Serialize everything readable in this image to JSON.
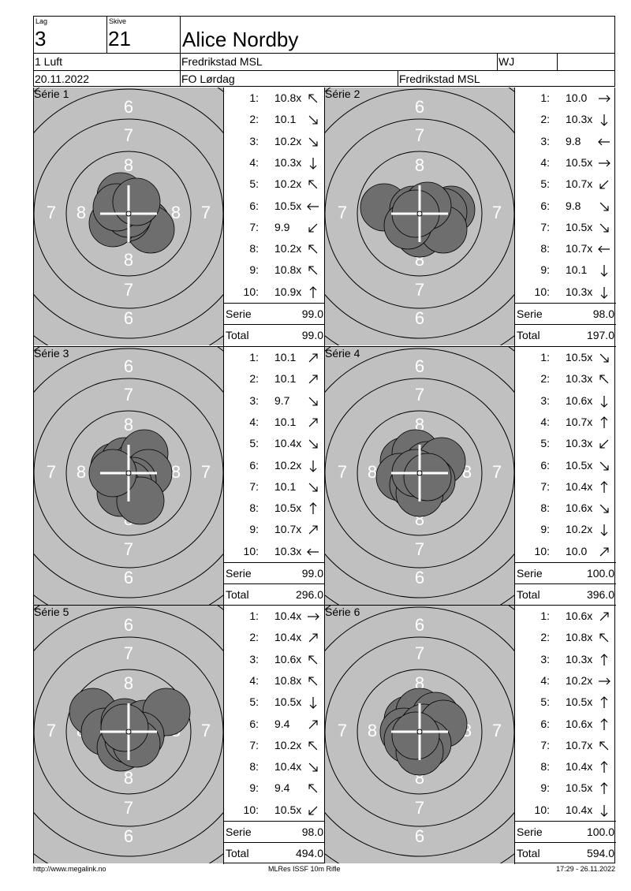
{
  "header": {
    "lag_label": "Lag",
    "lag_value": "3",
    "skive_label": "Skive",
    "skive_value": "21",
    "shooter_name": "Alice Nordby",
    "class": "1 Luft",
    "club": "Fredrikstad MSL",
    "category": "WJ",
    "extra": "",
    "date": "20.11.2022",
    "competition": "FO Lørdag",
    "organizer": "Fredrikstad MSL"
  },
  "labels": {
    "serie": "Serie",
    "total": "Total"
  },
  "ring_numbers": [
    "6",
    "7",
    "8"
  ],
  "series": [
    {
      "title": "Série 1",
      "serie": "99.0",
      "total": "99.0",
      "shots": [
        {
          "n": "1:",
          "v": "10.8x",
          "dir": "nw"
        },
        {
          "n": "2:",
          "v": "10.1",
          "dir": "se"
        },
        {
          "n": "3:",
          "v": "10.2x",
          "dir": "se"
        },
        {
          "n": "4:",
          "v": "10.3x",
          "dir": "s"
        },
        {
          "n": "5:",
          "v": "10.2x",
          "dir": "nw"
        },
        {
          "n": "6:",
          "v": "10.5x",
          "dir": "w"
        },
        {
          "n": "7:",
          "v": "9.9",
          "dir": "sw"
        },
        {
          "n": "8:",
          "v": "10.2x",
          "dir": "nw"
        },
        {
          "n": "9:",
          "v": "10.8x",
          "dir": "nw"
        },
        {
          "n": "10:",
          "v": "10.9x",
          "dir": "n"
        }
      ]
    },
    {
      "title": "Série 2",
      "serie": "98.0",
      "total": "197.0",
      "shots": [
        {
          "n": "1:",
          "v": "10.0",
          "dir": "e"
        },
        {
          "n": "2:",
          "v": "10.3x",
          "dir": "s"
        },
        {
          "n": "3:",
          "v": "9.8",
          "dir": "w"
        },
        {
          "n": "4:",
          "v": "10.5x",
          "dir": "e"
        },
        {
          "n": "5:",
          "v": "10.7x",
          "dir": "sw"
        },
        {
          "n": "6:",
          "v": "9.8",
          "dir": "se"
        },
        {
          "n": "7:",
          "v": "10.5x",
          "dir": "se"
        },
        {
          "n": "8:",
          "v": "10.7x",
          "dir": "w"
        },
        {
          "n": "9:",
          "v": "10.1",
          "dir": "s"
        },
        {
          "n": "10:",
          "v": "10.3x",
          "dir": "s"
        }
      ]
    },
    {
      "title": "Série 3",
      "serie": "99.0",
      "total": "296.0",
      "shots": [
        {
          "n": "1:",
          "v": "10.1",
          "dir": "ne"
        },
        {
          "n": "2:",
          "v": "10.1",
          "dir": "ne"
        },
        {
          "n": "3:",
          "v": "9.7",
          "dir": "se"
        },
        {
          "n": "4:",
          "v": "10.1",
          "dir": "ne"
        },
        {
          "n": "5:",
          "v": "10.4x",
          "dir": "se"
        },
        {
          "n": "6:",
          "v": "10.2x",
          "dir": "s"
        },
        {
          "n": "7:",
          "v": "10.1",
          "dir": "se"
        },
        {
          "n": "8:",
          "v": "10.5x",
          "dir": "n"
        },
        {
          "n": "9:",
          "v": "10.7x",
          "dir": "ne"
        },
        {
          "n": "10:",
          "v": "10.3x",
          "dir": "w"
        }
      ]
    },
    {
      "title": "Série 4",
      "serie": "100.0",
      "total": "396.0",
      "shots": [
        {
          "n": "1:",
          "v": "10.5x",
          "dir": "se"
        },
        {
          "n": "2:",
          "v": "10.3x",
          "dir": "nw"
        },
        {
          "n": "3:",
          "v": "10.6x",
          "dir": "s"
        },
        {
          "n": "4:",
          "v": "10.7x",
          "dir": "n"
        },
        {
          "n": "5:",
          "v": "10.3x",
          "dir": "sw"
        },
        {
          "n": "6:",
          "v": "10.5x",
          "dir": "se"
        },
        {
          "n": "7:",
          "v": "10.4x",
          "dir": "n"
        },
        {
          "n": "8:",
          "v": "10.6x",
          "dir": "se"
        },
        {
          "n": "9:",
          "v": "10.2x",
          "dir": "s"
        },
        {
          "n": "10:",
          "v": "10.0",
          "dir": "ne"
        }
      ]
    },
    {
      "title": "Série 5",
      "serie": "98.0",
      "total": "494.0",
      "shots": [
        {
          "n": "1:",
          "v": "10.4x",
          "dir": "e"
        },
        {
          "n": "2:",
          "v": "10.4x",
          "dir": "ne"
        },
        {
          "n": "3:",
          "v": "10.6x",
          "dir": "nw"
        },
        {
          "n": "4:",
          "v": "10.8x",
          "dir": "nw"
        },
        {
          "n": "5:",
          "v": "10.5x",
          "dir": "s"
        },
        {
          "n": "6:",
          "v": "9.4",
          "dir": "ne"
        },
        {
          "n": "7:",
          "v": "10.2x",
          "dir": "nw"
        },
        {
          "n": "8:",
          "v": "10.4x",
          "dir": "se"
        },
        {
          "n": "9:",
          "v": "9.4",
          "dir": "nw"
        },
        {
          "n": "10:",
          "v": "10.5x",
          "dir": "sw"
        }
      ]
    },
    {
      "title": "Série 6",
      "serie": "100.0",
      "total": "594.0",
      "shots": [
        {
          "n": "1:",
          "v": "10.6x",
          "dir": "ne"
        },
        {
          "n": "2:",
          "v": "10.8x",
          "dir": "nw"
        },
        {
          "n": "3:",
          "v": "10.3x",
          "dir": "n"
        },
        {
          "n": "4:",
          "v": "10.2x",
          "dir": "e"
        },
        {
          "n": "5:",
          "v": "10.5x",
          "dir": "n"
        },
        {
          "n": "6:",
          "v": "10.6x",
          "dir": "n"
        },
        {
          "n": "7:",
          "v": "10.7x",
          "dir": "nw"
        },
        {
          "n": "8:",
          "v": "10.4x",
          "dir": "n"
        },
        {
          "n": "9:",
          "v": "10.5x",
          "dir": "n"
        },
        {
          "n": "10:",
          "v": "10.4x",
          "dir": "s"
        }
      ]
    }
  ],
  "footer": {
    "url": "http://www.megalink.no",
    "program": "MLRes ISSF 10m Rifle",
    "timestamp": "17:29 - 26.11.2022"
  },
  "colors": {
    "target_bg": "#c0c0c0",
    "shot_fill": "#6e6e6e",
    "ring": "#000000"
  }
}
